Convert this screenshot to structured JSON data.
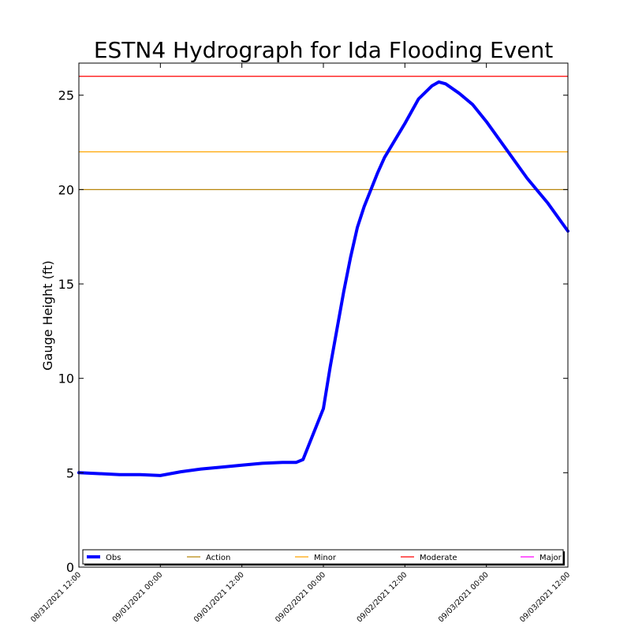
{
  "chart_data": {
    "type": "line",
    "title": "ESTN4 Hydrograph for Ida Flooding Event",
    "xlabel": "",
    "ylabel": "Gauge Height (ft)",
    "ylim": [
      0,
      26.7
    ],
    "xlim": [
      "08/31/2021 12:00",
      "09/03/2021 12:00"
    ],
    "x_ticks": [
      "08/31/2021 12:00",
      "09/01/2021 00:00",
      "09/01/2021 12:00",
      "09/02/2021 00:00",
      "09/02/2021 12:00",
      "09/03/2021 00:00",
      "09/03/2021 12:00"
    ],
    "y_ticks": [
      0,
      5,
      10,
      15,
      20,
      25
    ],
    "grid": false,
    "legend_position": "bottom",
    "series": [
      {
        "name": "Obs",
        "color": "#0000ff",
        "x": [
          "08/31/2021 12:00",
          "08/31/2021 15:00",
          "08/31/2021 18:00",
          "08/31/2021 21:00",
          "09/01/2021 00:00",
          "09/01/2021 03:00",
          "09/01/2021 06:00",
          "09/01/2021 09:00",
          "09/01/2021 12:00",
          "09/01/2021 15:00",
          "09/01/2021 18:00",
          "09/01/2021 20:00",
          "09/01/2021 21:00",
          "09/01/2021 22:00",
          "09/02/2021 00:00",
          "09/02/2021 01:00",
          "09/02/2021 02:00",
          "09/02/2021 03:00",
          "09/02/2021 04:00",
          "09/02/2021 05:00",
          "09/02/2021 06:00",
          "09/02/2021 08:00",
          "09/02/2021 09:00",
          "09/02/2021 12:00",
          "09/02/2021 14:00",
          "09/02/2021 16:00",
          "09/02/2021 17:00",
          "09/02/2021 18:00",
          "09/02/2021 20:00",
          "09/02/2021 22:00",
          "09/03/2021 00:00",
          "09/03/2021 03:00",
          "09/03/2021 06:00",
          "09/03/2021 09:00",
          "09/03/2021 12:00"
        ],
        "values": [
          5.0,
          4.95,
          4.9,
          4.9,
          4.85,
          5.05,
          5.2,
          5.3,
          5.4,
          5.5,
          5.55,
          5.55,
          5.7,
          6.6,
          8.4,
          10.6,
          12.6,
          14.6,
          16.4,
          18.0,
          19.1,
          20.9,
          21.7,
          23.5,
          24.8,
          25.5,
          25.7,
          25.6,
          25.1,
          24.5,
          23.6,
          22.1,
          20.6,
          19.3,
          17.8
        ]
      }
    ],
    "thresholds": [
      {
        "name": "Action",
        "value": 20.0,
        "color": "#b8860b"
      },
      {
        "name": "Minor",
        "value": 22.0,
        "color": "#ffa500"
      },
      {
        "name": "Moderate",
        "value": 26.0,
        "color": "#ff0000"
      },
      {
        "name": "Major",
        "value": null,
        "color": "#ff00ff"
      }
    ]
  }
}
